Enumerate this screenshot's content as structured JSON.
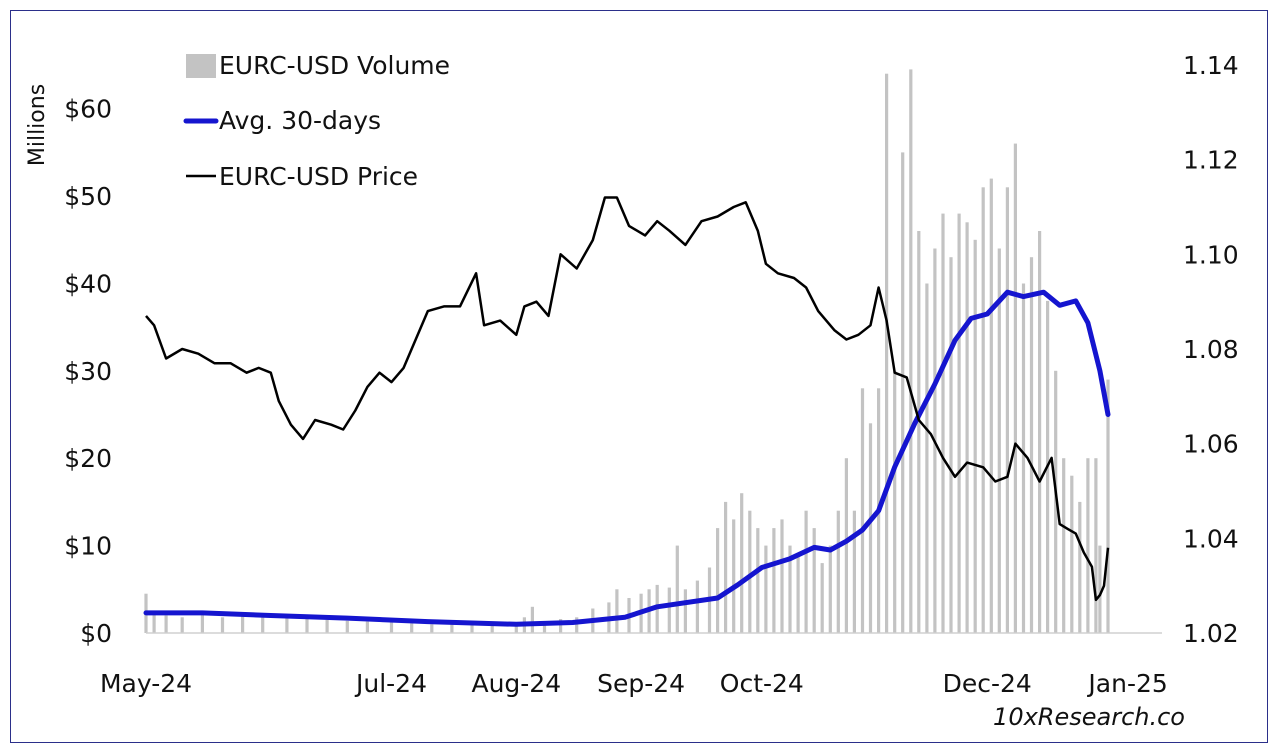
{
  "chart_data": {
    "type": "bar",
    "ylabel_left": "Millions",
    "credit": "10xResearch.co",
    "left_axis": {
      "range": [
        0,
        65
      ],
      "ticks": [
        0,
        10,
        20,
        30,
        40,
        50,
        60
      ],
      "tick_labels": [
        "$0",
        "$10",
        "$20",
        "$30",
        "$40",
        "$50",
        "$60"
      ]
    },
    "right_axis": {
      "range": [
        1.02,
        1.14
      ],
      "ticks": [
        1.02,
        1.04,
        1.06,
        1.08,
        1.1,
        1.12,
        1.14
      ],
      "tick_labels": [
        "1.02",
        "1.04",
        "1.06",
        "1.08",
        "1.10",
        "1.12",
        "1.14"
      ]
    },
    "x_axis": {
      "start": "2024-05-01",
      "end": "2024-12-26",
      "tick_labels": [
        "May-24",
        "Jul-24",
        "Aug-24",
        "Sep-24",
        "Oct-24",
        "Dec-24",
        "Jan-25"
      ],
      "tick_dates": [
        "2024-05-01",
        "2024-07-01",
        "2024-08-01",
        "2024-09-01",
        "2024-10-01",
        "2024-11-26",
        "2024-12-31"
      ]
    },
    "legend": {
      "placement": "top-left",
      "entries": [
        "EURC-USD Volume",
        "Avg. 30-days",
        "EURC-USD Price"
      ]
    },
    "series": [
      {
        "name": "EURC-USD Volume",
        "axis": "left",
        "kind": "bar",
        "color": "#c3c3c3",
        "points": [
          [
            "2024-05-01",
            4.5
          ],
          [
            "2024-05-03",
            2.5
          ],
          [
            "2024-05-06",
            2.0
          ],
          [
            "2024-05-10",
            1.8
          ],
          [
            "2024-05-15",
            2.2
          ],
          [
            "2024-05-20",
            1.8
          ],
          [
            "2024-05-25",
            2.0
          ],
          [
            "2024-05-30",
            1.9
          ],
          [
            "2024-06-05",
            1.8
          ],
          [
            "2024-06-10",
            1.6
          ],
          [
            "2024-06-15",
            1.5
          ],
          [
            "2024-06-20",
            1.4
          ],
          [
            "2024-06-25",
            1.3
          ],
          [
            "2024-07-01",
            1.3
          ],
          [
            "2024-07-06",
            1.1
          ],
          [
            "2024-07-11",
            1.0
          ],
          [
            "2024-07-16",
            1.0
          ],
          [
            "2024-07-21",
            0.9
          ],
          [
            "2024-07-26",
            0.8
          ],
          [
            "2024-08-01",
            0.9
          ],
          [
            "2024-08-03",
            1.8
          ],
          [
            "2024-08-05",
            3.0
          ],
          [
            "2024-08-08",
            1.3
          ],
          [
            "2024-08-12",
            1.6
          ],
          [
            "2024-08-16",
            1.8
          ],
          [
            "2024-08-20",
            2.8
          ],
          [
            "2024-08-24",
            3.5
          ],
          [
            "2024-08-26",
            5.0
          ],
          [
            "2024-08-29",
            4.0
          ],
          [
            "2024-09-01",
            4.5
          ],
          [
            "2024-09-03",
            5.0
          ],
          [
            "2024-09-05",
            5.5
          ],
          [
            "2024-09-08",
            5.2
          ],
          [
            "2024-09-10",
            10.0
          ],
          [
            "2024-09-12",
            5.0
          ],
          [
            "2024-09-15",
            6.0
          ],
          [
            "2024-09-18",
            7.5
          ],
          [
            "2024-09-20",
            12.0
          ],
          [
            "2024-09-22",
            15.0
          ],
          [
            "2024-09-24",
            13.0
          ],
          [
            "2024-09-26",
            16.0
          ],
          [
            "2024-09-28",
            14.0
          ],
          [
            "2024-09-30",
            12.0
          ],
          [
            "2024-10-02",
            10.0
          ],
          [
            "2024-10-04",
            12.0
          ],
          [
            "2024-10-06",
            13.0
          ],
          [
            "2024-10-08",
            10.0
          ],
          [
            "2024-10-10",
            9.0
          ],
          [
            "2024-10-12",
            14.0
          ],
          [
            "2024-10-14",
            12.0
          ],
          [
            "2024-10-16",
            8.0
          ],
          [
            "2024-10-18",
            10.0
          ],
          [
            "2024-10-20",
            14.0
          ],
          [
            "2024-10-22",
            20.0
          ],
          [
            "2024-10-24",
            14.0
          ],
          [
            "2024-10-26",
            28.0
          ],
          [
            "2024-10-28",
            24.0
          ],
          [
            "2024-10-30",
            28.0
          ],
          [
            "2024-11-01",
            64.0
          ],
          [
            "2024-11-03",
            30.0
          ],
          [
            "2024-11-05",
            55.0
          ],
          [
            "2024-11-07",
            64.5
          ],
          [
            "2024-11-09",
            46.0
          ],
          [
            "2024-11-11",
            40.0
          ],
          [
            "2024-11-13",
            44.0
          ],
          [
            "2024-11-15",
            48.0
          ],
          [
            "2024-11-17",
            43.0
          ],
          [
            "2024-11-19",
            48.0
          ],
          [
            "2024-11-21",
            47.0
          ],
          [
            "2024-11-23",
            45.0
          ],
          [
            "2024-11-25",
            51.0
          ],
          [
            "2024-11-27",
            52.0
          ],
          [
            "2024-11-29",
            44.0
          ],
          [
            "2024-12-01",
            51.0
          ],
          [
            "2024-12-03",
            56.0
          ],
          [
            "2024-12-05",
            40.0
          ],
          [
            "2024-12-07",
            43.0
          ],
          [
            "2024-12-09",
            46.0
          ],
          [
            "2024-12-11",
            38.0
          ],
          [
            "2024-12-13",
            30.0
          ],
          [
            "2024-12-15",
            20.0
          ],
          [
            "2024-12-17",
            18.0
          ],
          [
            "2024-12-19",
            15.0
          ],
          [
            "2024-12-21",
            20.0
          ],
          [
            "2024-12-23",
            20.0
          ],
          [
            "2024-12-24",
            10.0
          ],
          [
            "2024-12-26",
            29.0
          ]
        ]
      },
      {
        "name": "Avg. 30-days",
        "axis": "left",
        "kind": "line",
        "color": "#1515cf",
        "points": [
          [
            "2024-05-01",
            2.3
          ],
          [
            "2024-05-15",
            2.3
          ],
          [
            "2024-06-01",
            2.0
          ],
          [
            "2024-06-20",
            1.7
          ],
          [
            "2024-07-10",
            1.3
          ],
          [
            "2024-08-01",
            1.0
          ],
          [
            "2024-08-15",
            1.2
          ],
          [
            "2024-08-28",
            1.8
          ],
          [
            "2024-09-05",
            3.0
          ],
          [
            "2024-09-20",
            4.0
          ],
          [
            "2024-09-25",
            5.5
          ],
          [
            "2024-10-01",
            7.5
          ],
          [
            "2024-10-08",
            8.5
          ],
          [
            "2024-10-14",
            9.8
          ],
          [
            "2024-10-18",
            9.5
          ],
          [
            "2024-10-22",
            10.5
          ],
          [
            "2024-10-26",
            11.8
          ],
          [
            "2024-10-30",
            14.0
          ],
          [
            "2024-11-03",
            19.0
          ],
          [
            "2024-11-08",
            24.0
          ],
          [
            "2024-11-13",
            28.5
          ],
          [
            "2024-11-18",
            33.5
          ],
          [
            "2024-11-22",
            36.0
          ],
          [
            "2024-11-26",
            36.5
          ],
          [
            "2024-12-01",
            39.0
          ],
          [
            "2024-12-05",
            38.5
          ],
          [
            "2024-12-10",
            39.0
          ],
          [
            "2024-12-14",
            37.5
          ],
          [
            "2024-12-18",
            38.0
          ],
          [
            "2024-12-21",
            35.5
          ],
          [
            "2024-12-24",
            30.0
          ],
          [
            "2024-12-26",
            25.0
          ]
        ]
      },
      {
        "name": "EURC-USD Price",
        "axis": "right",
        "kind": "line",
        "color": "#000000",
        "points": [
          [
            "2024-05-01",
            1.087
          ],
          [
            "2024-05-03",
            1.085
          ],
          [
            "2024-05-06",
            1.078
          ],
          [
            "2024-05-10",
            1.08
          ],
          [
            "2024-05-14",
            1.079
          ],
          [
            "2024-05-18",
            1.077
          ],
          [
            "2024-05-22",
            1.077
          ],
          [
            "2024-05-26",
            1.075
          ],
          [
            "2024-05-29",
            1.076
          ],
          [
            "2024-06-01",
            1.075
          ],
          [
            "2024-06-03",
            1.069
          ],
          [
            "2024-06-06",
            1.064
          ],
          [
            "2024-06-09",
            1.061
          ],
          [
            "2024-06-12",
            1.065
          ],
          [
            "2024-06-16",
            1.064
          ],
          [
            "2024-06-19",
            1.063
          ],
          [
            "2024-06-22",
            1.067
          ],
          [
            "2024-06-25",
            1.072
          ],
          [
            "2024-06-28",
            1.075
          ],
          [
            "2024-07-01",
            1.073
          ],
          [
            "2024-07-04",
            1.076
          ],
          [
            "2024-07-07",
            1.082
          ],
          [
            "2024-07-10",
            1.088
          ],
          [
            "2024-07-14",
            1.089
          ],
          [
            "2024-07-18",
            1.089
          ],
          [
            "2024-07-22",
            1.096
          ],
          [
            "2024-07-24",
            1.085
          ],
          [
            "2024-07-28",
            1.086
          ],
          [
            "2024-08-01",
            1.083
          ],
          [
            "2024-08-03",
            1.089
          ],
          [
            "2024-08-06",
            1.09
          ],
          [
            "2024-08-09",
            1.087
          ],
          [
            "2024-08-12",
            1.1
          ],
          [
            "2024-08-16",
            1.097
          ],
          [
            "2024-08-20",
            1.103
          ],
          [
            "2024-08-23",
            1.112
          ],
          [
            "2024-08-26",
            1.112
          ],
          [
            "2024-08-29",
            1.106
          ],
          [
            "2024-09-02",
            1.104
          ],
          [
            "2024-09-05",
            1.107
          ],
          [
            "2024-09-08",
            1.105
          ],
          [
            "2024-09-12",
            1.102
          ],
          [
            "2024-09-16",
            1.107
          ],
          [
            "2024-09-20",
            1.108
          ],
          [
            "2024-09-24",
            1.11
          ],
          [
            "2024-09-27",
            1.111
          ],
          [
            "2024-09-30",
            1.105
          ],
          [
            "2024-10-02",
            1.098
          ],
          [
            "2024-10-05",
            1.096
          ],
          [
            "2024-10-09",
            1.095
          ],
          [
            "2024-10-12",
            1.093
          ],
          [
            "2024-10-15",
            1.088
          ],
          [
            "2024-10-19",
            1.084
          ],
          [
            "2024-10-22",
            1.082
          ],
          [
            "2024-10-25",
            1.083
          ],
          [
            "2024-10-28",
            1.085
          ],
          [
            "2024-10-30",
            1.093
          ],
          [
            "2024-11-01",
            1.086
          ],
          [
            "2024-11-03",
            1.075
          ],
          [
            "2024-11-06",
            1.074
          ],
          [
            "2024-11-09",
            1.065
          ],
          [
            "2024-11-12",
            1.062
          ],
          [
            "2024-11-15",
            1.057
          ],
          [
            "2024-11-18",
            1.053
          ],
          [
            "2024-11-21",
            1.056
          ],
          [
            "2024-11-25",
            1.055
          ],
          [
            "2024-11-28",
            1.052
          ],
          [
            "2024-12-01",
            1.053
          ],
          [
            "2024-12-03",
            1.06
          ],
          [
            "2024-12-06",
            1.057
          ],
          [
            "2024-12-09",
            1.052
          ],
          [
            "2024-12-12",
            1.057
          ],
          [
            "2024-12-14",
            1.043
          ],
          [
            "2024-12-16",
            1.042
          ],
          [
            "2024-12-18",
            1.041
          ],
          [
            "2024-12-20",
            1.037
          ],
          [
            "2024-12-22",
            1.034
          ],
          [
            "2024-12-23",
            1.027
          ],
          [
            "2024-12-24",
            1.028
          ],
          [
            "2024-12-25",
            1.03
          ],
          [
            "2024-12-26",
            1.038
          ]
        ]
      }
    ]
  }
}
